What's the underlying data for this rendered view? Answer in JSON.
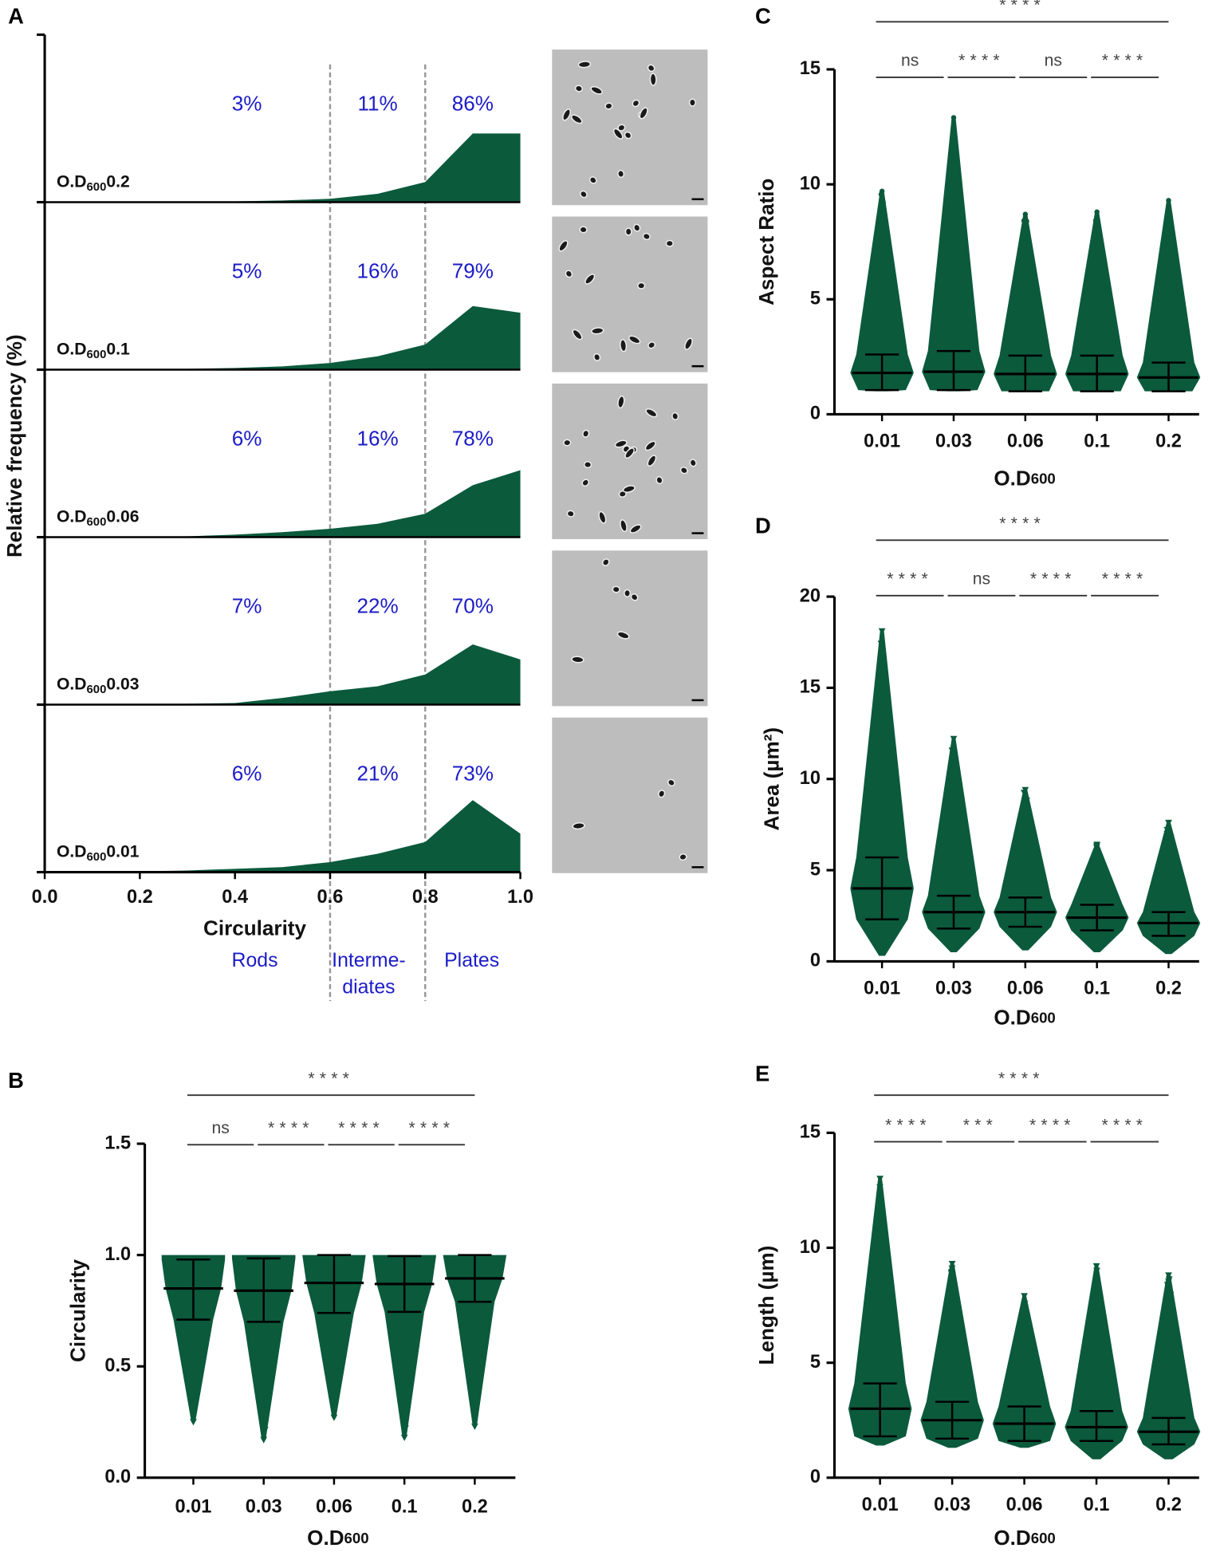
{
  "chart_data": [
    {
      "type": "ridgeline",
      "panel": "A",
      "y_label": "Relative frequency (%)",
      "x_label": "Circularity",
      "x": [
        0,
        0.1,
        0.2,
        0.3,
        0.4,
        0.5,
        0.6,
        0.7,
        0.8,
        0.9,
        1.0
      ],
      "xlim": [
        0,
        1
      ],
      "xticks": [
        {
          "value": 0,
          "label": "0.0"
        },
        0.2,
        0.4,
        0.6,
        0.8,
        {
          "value": 1,
          "label": "1.0"
        }
      ],
      "ylim": [
        0,
        100
      ],
      "thresholds": [
        0.6,
        0.8
      ],
      "color": "#0b5a3c",
      "classes": [
        [
          "Rods"
        ],
        [
          "Interme-",
          "diates"
        ],
        [
          "Plates"
        ]
      ],
      "series": [
        {
          "label": [
            "O.D",
            "600",
            "0.2"
          ],
          "values": [
            0,
            0,
            0,
            0,
            0.5,
            1,
            2,
            5,
            12,
            41,
            41
          ],
          "percent": [
            3,
            11,
            86
          ],
          "percent_labels": [
            "3%",
            "11%",
            "86%"
          ]
        },
        {
          "label": [
            "O.D",
            "600",
            "0.1"
          ],
          "values": [
            0,
            0,
            0,
            0.5,
            1,
            2,
            4,
            8,
            15,
            38,
            34
          ],
          "percent": [
            5,
            16,
            79
          ],
          "percent_labels": [
            "5%",
            "16%",
            "79%"
          ]
        },
        {
          "label": [
            "O.D",
            "600",
            "0.06"
          ],
          "values": [
            0,
            0,
            0,
            0.5,
            1.5,
            3,
            5,
            8,
            14,
            31,
            40
          ],
          "percent": [
            6,
            16,
            78
          ],
          "percent_labels": [
            "6%",
            "16%",
            "78%"
          ]
        },
        {
          "label": [
            "O.D",
            "600",
            "0.03"
          ],
          "values": [
            0,
            0,
            0,
            0.5,
            1,
            4,
            8,
            11,
            18,
            36,
            27
          ],
          "percent": [
            7,
            22,
            70
          ],
          "percent_labels": [
            "7%",
            "22%",
            "70%"
          ]
        },
        {
          "label": [
            "O.D",
            "600",
            "0.01"
          ],
          "values": [
            0,
            0,
            0.5,
            1,
            2,
            3,
            6,
            11,
            18,
            43,
            23
          ],
          "percent": [
            6,
            21,
            73
          ],
          "percent_labels": [
            "6%",
            "21%",
            "73%"
          ]
        }
      ]
    },
    {
      "type": "dot_plot",
      "panel": "B",
      "y_label": "Circularity",
      "x_label": "O.D",
      "x_label_sub": "600",
      "color": "#0b5a3c",
      "categories": [
        "0.01",
        "0.03",
        "0.06",
        "0.1",
        "0.2"
      ],
      "ylim": [
        0,
        1.5
      ],
      "yticks": [
        {
          "value": 0,
          "label": "0.0"
        },
        0.5,
        {
          "value": 1,
          "label": "1.0"
        },
        1.5
      ],
      "min": [
        0.25,
        0.17,
        0.27,
        0.18,
        0.23
      ],
      "lower": [
        0.71,
        0.7,
        0.74,
        0.745,
        0.79
      ],
      "center": [
        0.85,
        0.84,
        0.875,
        0.87,
        0.895
      ],
      "upper": [
        0.98,
        0.985,
        1.0,
        0.995,
        1.0
      ],
      "max": [
        1.0,
        1.0,
        1.0,
        1.0,
        1.0
      ],
      "comparisons": [
        {
          "groups": [
            "0.01",
            "0.2"
          ],
          "label": "****",
          "level": "top"
        },
        {
          "groups": [
            "0.01",
            "0.03"
          ],
          "label": "ns",
          "level": "pair"
        },
        {
          "groups": [
            "0.03",
            "0.06"
          ],
          "label": "****",
          "level": "pair"
        },
        {
          "groups": [
            "0.06",
            "0.1"
          ],
          "label": "****",
          "level": "pair"
        },
        {
          "groups": [
            "0.1",
            "0.2"
          ],
          "label": "****",
          "level": "pair"
        }
      ]
    },
    {
      "type": "dot_plot",
      "panel": "C",
      "y_label": "Aspect Ratio",
      "x_label": "O.D",
      "x_label_sub": "600",
      "color": "#0b5a3c",
      "categories": [
        "0.01",
        "0.03",
        "0.06",
        "0.1",
        "0.2"
      ],
      "ylim": [
        0,
        15
      ],
      "yticks": [
        0,
        5,
        10,
        15
      ],
      "min": [
        1.0,
        1.0,
        1.0,
        1.0,
        1.0
      ],
      "lower": [
        1.05,
        1.05,
        1.0,
        1.0,
        1.0
      ],
      "center": [
        1.8,
        1.85,
        1.75,
        1.75,
        1.6
      ],
      "upper": [
        2.6,
        2.75,
        2.55,
        2.55,
        2.25
      ],
      "max": [
        9.7,
        12.9,
        8.7,
        8.8,
        9.3
      ],
      "comparisons": [
        {
          "groups": [
            "0.01",
            "0.2"
          ],
          "label": "****",
          "level": "top"
        },
        {
          "groups": [
            "0.01",
            "0.03"
          ],
          "label": "ns",
          "level": "pair"
        },
        {
          "groups": [
            "0.03",
            "0.06"
          ],
          "label": "****",
          "level": "pair"
        },
        {
          "groups": [
            "0.06",
            "0.1"
          ],
          "label": "ns",
          "level": "pair"
        },
        {
          "groups": [
            "0.1",
            "0.2"
          ],
          "label": "****",
          "level": "pair"
        }
      ]
    },
    {
      "type": "dot_plot",
      "panel": "D",
      "y_label": "Area (µm²)",
      "x_label": "O.D",
      "x_label_sub": "600",
      "color": "#0b5a3c",
      "categories": [
        "0.01",
        "0.03",
        "0.06",
        "0.1",
        "0.2"
      ],
      "ylim": [
        0,
        20
      ],
      "yticks": [
        0,
        5,
        10,
        15,
        20
      ],
      "min": [
        0.3,
        0.5,
        0.6,
        0.5,
        0.4
      ],
      "lower": [
        2.3,
        1.8,
        1.9,
        1.7,
        1.4
      ],
      "center": [
        4.0,
        2.7,
        2.7,
        2.4,
        2.1
      ],
      "upper": [
        5.7,
        3.6,
        3.5,
        3.1,
        2.7
      ],
      "max": [
        18.1,
        12.2,
        9.4,
        6.4,
        7.6
      ],
      "comparisons": [
        {
          "groups": [
            "0.01",
            "0.2"
          ],
          "label": "****",
          "level": "top"
        },
        {
          "groups": [
            "0.01",
            "0.03"
          ],
          "label": "****",
          "level": "pair"
        },
        {
          "groups": [
            "0.03",
            "0.06"
          ],
          "label": "ns",
          "level": "pair"
        },
        {
          "groups": [
            "0.06",
            "0.1"
          ],
          "label": "****",
          "level": "pair"
        },
        {
          "groups": [
            "0.1",
            "0.2"
          ],
          "label": "****",
          "level": "pair"
        }
      ]
    },
    {
      "type": "dot_plot",
      "panel": "E",
      "y_label": "Length (µm)",
      "x_label": "O.D",
      "x_label_sub": "600",
      "color": "#0b5a3c",
      "categories": [
        "0.01",
        "0.03",
        "0.06",
        "0.1",
        "0.2"
      ],
      "ylim": [
        0,
        15
      ],
      "yticks": [
        0,
        5,
        10,
        15
      ],
      "min": [
        1.4,
        1.3,
        1.3,
        0.8,
        0.8
      ],
      "lower": [
        1.8,
        1.7,
        1.6,
        1.6,
        1.45
      ],
      "center": [
        3.0,
        2.5,
        2.35,
        2.2,
        2.0
      ],
      "upper": [
        4.1,
        3.3,
        3.1,
        2.9,
        2.6
      ],
      "max": [
        13.0,
        9.3,
        7.9,
        9.2,
        8.8
      ],
      "comparisons": [
        {
          "groups": [
            "0.01",
            "0.2"
          ],
          "label": "****",
          "level": "top"
        },
        {
          "groups": [
            "0.01",
            "0.03"
          ],
          "label": "****",
          "level": "pair"
        },
        {
          "groups": [
            "0.03",
            "0.06"
          ],
          "label": "***",
          "level": "pair"
        },
        {
          "groups": [
            "0.06",
            "0.1"
          ],
          "label": "****",
          "level": "pair"
        },
        {
          "groups": [
            "0.1",
            "0.2"
          ],
          "label": "****",
          "level": "pair"
        }
      ]
    }
  ]
}
